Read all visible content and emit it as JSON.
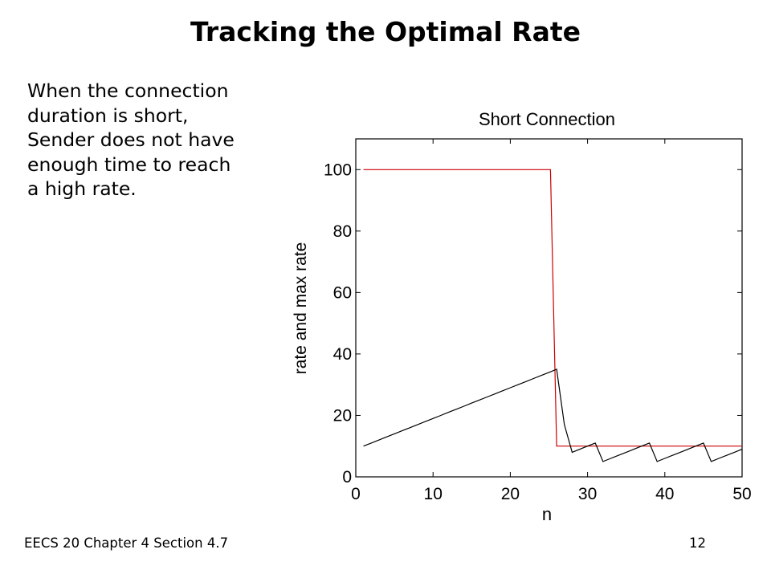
{
  "slide": {
    "title": "Tracking the Optimal Rate",
    "body_lines": [
      "When the connection",
      "duration is short,",
      "Sender does not have",
      "enough time to reach",
      "a high rate."
    ],
    "footer_left": "EECS 20 Chapter 4 Section 4.7",
    "page_number": "12"
  },
  "chart_data": {
    "type": "line",
    "title": "Short Connection",
    "xlabel": "n",
    "ylabel": "rate and max rate",
    "xlim": [
      0,
      50
    ],
    "ylim": [
      0,
      110
    ],
    "xticks": [
      0,
      10,
      20,
      30,
      40,
      50
    ],
    "yticks": [
      0,
      20,
      40,
      60,
      80,
      100
    ],
    "grid": false,
    "series": [
      {
        "color": "#cc0000",
        "x": [
          1,
          25.2,
          26,
          50
        ],
        "y": [
          100,
          100,
          10,
          10
        ]
      },
      {
        "color": "#000000",
        "x": [
          1,
          2,
          3,
          4,
          5,
          6,
          7,
          8,
          9,
          10,
          11,
          12,
          13,
          14,
          15,
          16,
          17,
          18,
          19,
          20,
          21,
          22,
          23,
          24,
          25,
          26,
          27,
          28,
          29,
          30,
          31,
          32,
          33,
          34,
          35,
          36,
          37,
          38,
          39,
          40,
          41,
          42,
          43,
          44,
          45,
          46,
          47,
          48,
          49,
          50
        ],
        "y": [
          10,
          11,
          12,
          13,
          14,
          15,
          16,
          17,
          18,
          19,
          20,
          21,
          22,
          23,
          24,
          25,
          26,
          27,
          28,
          29,
          30,
          31,
          32,
          33,
          34,
          35,
          17,
          8,
          9,
          10,
          11,
          5,
          6,
          7,
          8,
          9,
          10,
          11,
          5,
          6,
          7,
          8,
          9,
          10,
          11,
          5,
          6,
          7,
          8,
          9
        ]
      }
    ]
  }
}
